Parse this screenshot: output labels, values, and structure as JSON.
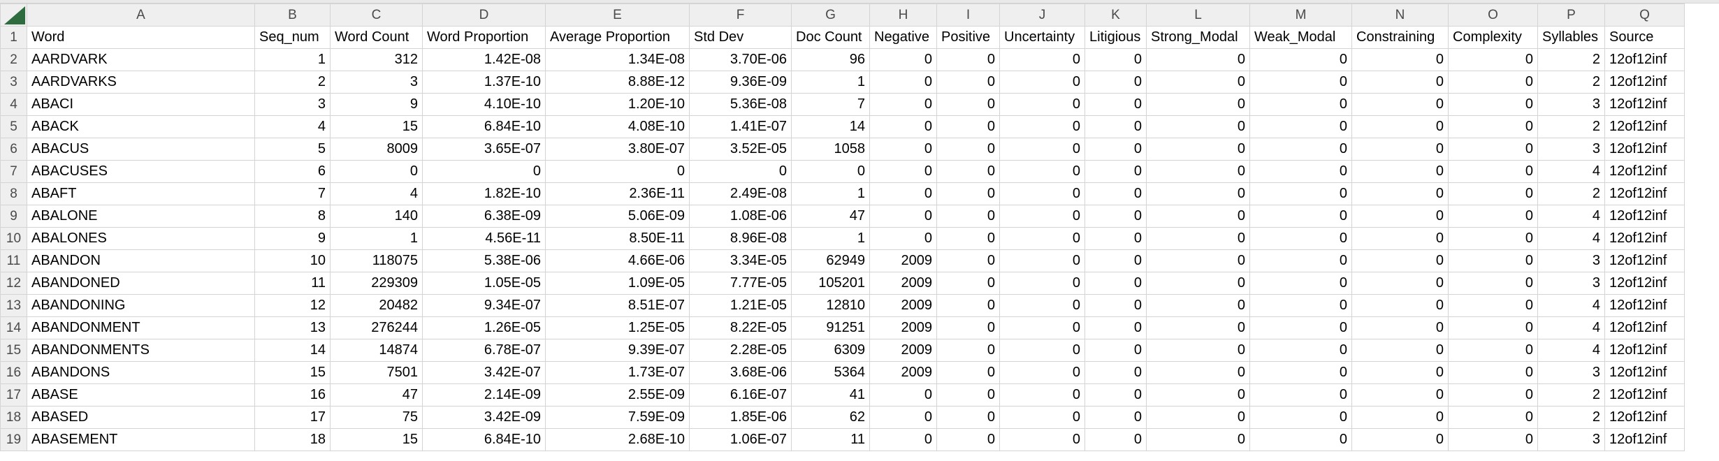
{
  "sheet": {
    "column_letters": [
      "A",
      "B",
      "C",
      "D",
      "E",
      "F",
      "G",
      "H",
      "I",
      "J",
      "K",
      "L",
      "M",
      "N",
      "O",
      "P",
      "Q"
    ],
    "headers": [
      "Word",
      "Seq_num",
      "Word Count",
      "Word Proportion",
      "Average Proportion",
      "Std Dev",
      "Doc Count",
      "Negative",
      "Positive",
      "Uncertainty",
      "Litigious",
      "Strong_Modal",
      "Weak_Modal",
      "Constraining",
      "Complexity",
      "Syllables",
      "Source"
    ],
    "rows": [
      {
        "n": "2",
        "c": [
          "AARDVARK",
          "1",
          "312",
          "1.42E-08",
          "1.34E-08",
          "3.70E-06",
          "96",
          "0",
          "0",
          "0",
          "0",
          "0",
          "0",
          "0",
          "0",
          "2",
          "12of12inf"
        ]
      },
      {
        "n": "3",
        "c": [
          "AARDVARKS",
          "2",
          "3",
          "1.37E-10",
          "8.88E-12",
          "9.36E-09",
          "1",
          "0",
          "0",
          "0",
          "0",
          "0",
          "0",
          "0",
          "0",
          "2",
          "12of12inf"
        ]
      },
      {
        "n": "4",
        "c": [
          "ABACI",
          "3",
          "9",
          "4.10E-10",
          "1.20E-10",
          "5.36E-08",
          "7",
          "0",
          "0",
          "0",
          "0",
          "0",
          "0",
          "0",
          "0",
          "3",
          "12of12inf"
        ]
      },
      {
        "n": "5",
        "c": [
          "ABACK",
          "4",
          "15",
          "6.84E-10",
          "4.08E-10",
          "1.41E-07",
          "14",
          "0",
          "0",
          "0",
          "0",
          "0",
          "0",
          "0",
          "0",
          "2",
          "12of12inf"
        ]
      },
      {
        "n": "6",
        "c": [
          "ABACUS",
          "5",
          "8009",
          "3.65E-07",
          "3.80E-07",
          "3.52E-05",
          "1058",
          "0",
          "0",
          "0",
          "0",
          "0",
          "0",
          "0",
          "0",
          "3",
          "12of12inf"
        ]
      },
      {
        "n": "7",
        "c": [
          "ABACUSES",
          "6",
          "0",
          "0",
          "0",
          "0",
          "0",
          "0",
          "0",
          "0",
          "0",
          "0",
          "0",
          "0",
          "0",
          "4",
          "12of12inf"
        ]
      },
      {
        "n": "8",
        "c": [
          "ABAFT",
          "7",
          "4",
          "1.82E-10",
          "2.36E-11",
          "2.49E-08",
          "1",
          "0",
          "0",
          "0",
          "0",
          "0",
          "0",
          "0",
          "0",
          "2",
          "12of12inf"
        ]
      },
      {
        "n": "9",
        "c": [
          "ABALONE",
          "8",
          "140",
          "6.38E-09",
          "5.06E-09",
          "1.08E-06",
          "47",
          "0",
          "0",
          "0",
          "0",
          "0",
          "0",
          "0",
          "0",
          "4",
          "12of12inf"
        ]
      },
      {
        "n": "10",
        "c": [
          "ABALONES",
          "9",
          "1",
          "4.56E-11",
          "8.50E-11",
          "8.96E-08",
          "1",
          "0",
          "0",
          "0",
          "0",
          "0",
          "0",
          "0",
          "0",
          "4",
          "12of12inf"
        ]
      },
      {
        "n": "11",
        "c": [
          "ABANDON",
          "10",
          "118075",
          "5.38E-06",
          "4.66E-06",
          "3.34E-05",
          "62949",
          "2009",
          "0",
          "0",
          "0",
          "0",
          "0",
          "0",
          "0",
          "3",
          "12of12inf"
        ]
      },
      {
        "n": "12",
        "c": [
          "ABANDONED",
          "11",
          "229309",
          "1.05E-05",
          "1.09E-05",
          "7.77E-05",
          "105201",
          "2009",
          "0",
          "0",
          "0",
          "0",
          "0",
          "0",
          "0",
          "3",
          "12of12inf"
        ]
      },
      {
        "n": "13",
        "c": [
          "ABANDONING",
          "12",
          "20482",
          "9.34E-07",
          "8.51E-07",
          "1.21E-05",
          "12810",
          "2009",
          "0",
          "0",
          "0",
          "0",
          "0",
          "0",
          "0",
          "4",
          "12of12inf"
        ]
      },
      {
        "n": "14",
        "c": [
          "ABANDONMENT",
          "13",
          "276244",
          "1.26E-05",
          "1.25E-05",
          "8.22E-05",
          "91251",
          "2009",
          "0",
          "0",
          "0",
          "0",
          "0",
          "0",
          "0",
          "4",
          "12of12inf"
        ]
      },
      {
        "n": "15",
        "c": [
          "ABANDONMENTS",
          "14",
          "14874",
          "6.78E-07",
          "9.39E-07",
          "2.28E-05",
          "6309",
          "2009",
          "0",
          "0",
          "0",
          "0",
          "0",
          "0",
          "0",
          "4",
          "12of12inf"
        ]
      },
      {
        "n": "16",
        "c": [
          "ABANDONS",
          "15",
          "7501",
          "3.42E-07",
          "1.73E-07",
          "3.68E-06",
          "5364",
          "2009",
          "0",
          "0",
          "0",
          "0",
          "0",
          "0",
          "0",
          "3",
          "12of12inf"
        ]
      },
      {
        "n": "17",
        "c": [
          "ABASE",
          "16",
          "47",
          "2.14E-09",
          "2.55E-09",
          "6.16E-07",
          "41",
          "0",
          "0",
          "0",
          "0",
          "0",
          "0",
          "0",
          "0",
          "2",
          "12of12inf"
        ]
      },
      {
        "n": "18",
        "c": [
          "ABASED",
          "17",
          "75",
          "3.42E-09",
          "7.59E-09",
          "1.85E-06",
          "62",
          "0",
          "0",
          "0",
          "0",
          "0",
          "0",
          "0",
          "0",
          "2",
          "12of12inf"
        ]
      },
      {
        "n": "19",
        "c": [
          "ABASEMENT",
          "18",
          "15",
          "6.84E-10",
          "2.68E-10",
          "1.06E-07",
          "11",
          "0",
          "0",
          "0",
          "0",
          "0",
          "0",
          "0",
          "0",
          "3",
          "12of12inf"
        ]
      }
    ],
    "colors": {
      "grid": "#d4d4d4",
      "header_bg": "#efefef",
      "corner_triangle": "#2e6b3f"
    }
  }
}
